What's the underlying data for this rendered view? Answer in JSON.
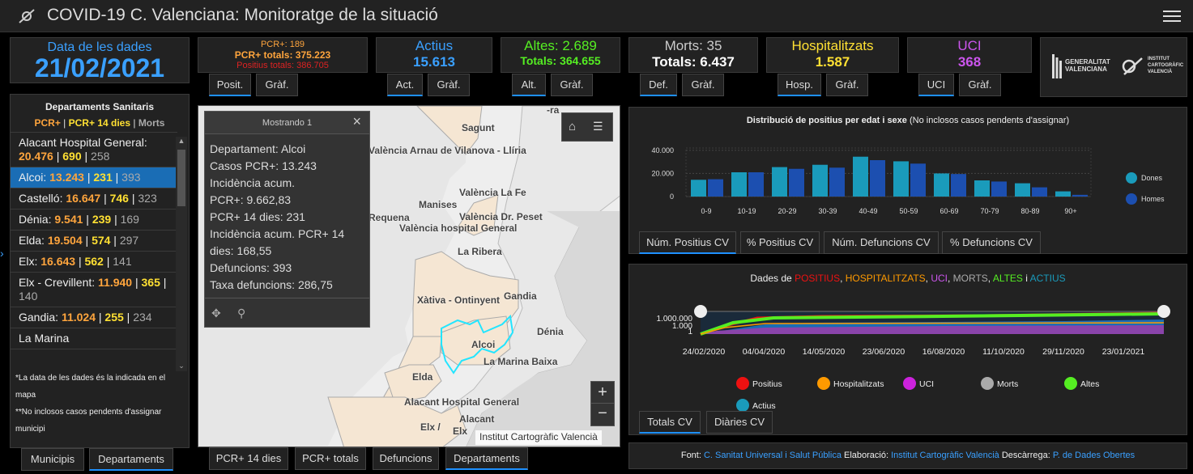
{
  "app": {
    "title": "COVID-19 C. Valenciana: Monitoratge de la situació"
  },
  "date_card": {
    "label": "Data de les dades",
    "value": "21/02/2021"
  },
  "pcr_card": {
    "line1": "PCR+: 189",
    "line2": "PCR+ totals: 375.223",
    "line3": "Positius totals: 386.705",
    "tab1": "Posit.",
    "tab2": "Gràf."
  },
  "actius_card": {
    "label": "Actius",
    "value": "15.613",
    "tab1": "Act.",
    "tab2": "Gràf."
  },
  "altes_card": {
    "label": "Altes: 2.689",
    "value": "Totals: 364.655",
    "tab1": "Alt.",
    "tab2": "Gràf."
  },
  "morts_card": {
    "label": "Morts: 35",
    "value": "Totals: 6.437",
    "tab1": "Def.",
    "tab2": "Gràf."
  },
  "hosp_card": {
    "label": "Hospitalitzats",
    "value": "1.587",
    "tab1": "Hosp.",
    "tab2": "Gràf."
  },
  "uci_card": {
    "label": "UCI",
    "value": "368",
    "tab1": "UCI",
    "tab2": "Gràf."
  },
  "logos": {
    "gva1": "GENERALITAT",
    "gva2": "VALENCIANA",
    "icv1": "INSTITUT",
    "icv2": "CARTOGRÀFIC",
    "icv3": "VALENCIÀ"
  },
  "departments": {
    "title": "Departaments Sanitaris",
    "legend_pcr": "PCR+",
    "legend_sep1": " | ",
    "legend_14": "PCR+ 14 dies",
    "legend_sep2": " | ",
    "legend_morts": "Morts",
    "items": [
      {
        "name": "Alacant Hospital General: ",
        "pcr": "20.476",
        "d14": "690",
        "morts": "258"
      },
      {
        "name": "Alcoi: ",
        "pcr": "13.243",
        "d14": "231",
        "morts": "393"
      },
      {
        "name": "Castelló: ",
        "pcr": "16.647",
        "d14": "746",
        "morts": "323"
      },
      {
        "name": "Dénia: ",
        "pcr": "9.541",
        "d14": "239",
        "morts": "169"
      },
      {
        "name": "Elda: ",
        "pcr": "19.504",
        "d14": "574",
        "morts": "297"
      },
      {
        "name": "Elx: ",
        "pcr": "16.643",
        "d14": "562",
        "morts": "141"
      },
      {
        "name": "Elx - Crevillent: ",
        "pcr": "11.940",
        "d14": "365",
        "morts": "140"
      },
      {
        "name": "Gandia: ",
        "pcr": "11.024",
        "d14": "255",
        "morts": "234"
      },
      {
        "name": "La Marina",
        "pcr": "",
        "d14": "",
        "morts": ""
      }
    ],
    "sep": " | ",
    "note1": "*La data de les dades és la indicada en el mapa",
    "note2": "**No inclosos casos pendents d'assignar municipi",
    "tab1": "Municipis",
    "tab2": "Departaments"
  },
  "popup": {
    "header": "Mostrando 1",
    "lines": [
      "Departament: Alcoi",
      "Casos PCR+: 13.243",
      "Incidència acum.",
      "PCR+: 9.662,83",
      "PCR+ 14 dies: 231",
      "Incidència acum. PCR+ 14",
      "dies: 168,55",
      "Defuncions: 393",
      "Taxa defuncions: 286,75"
    ]
  },
  "map": {
    "labels": [
      "Sagunt",
      "València Arnau de Vilanova - Llíria",
      "Manises",
      "València La Fe",
      "València Dr. Peset",
      "València hospital General",
      "La Ribera",
      "Xàtiva - Ontinyent",
      "Gandia",
      "Dénia",
      "Alcoi",
      "La Marina Baixa",
      "Elda",
      "Alacant Hospital General",
      "Alacant",
      "Elx /",
      "Elx",
      "Requena",
      "-ra"
    ],
    "attribution": "Institut Cartogràfic Valencià",
    "tabs": [
      "PCR+ 14 dies",
      "PCR+ totals",
      "Defuncions",
      "Departaments"
    ]
  },
  "age_chart": {
    "title_bold": "Distribució de positius per edat i sexe",
    "title_note": " (No inclosos casos pendents d'assignar)",
    "tabs": [
      "Núm. Positius CV",
      "% Positius CV",
      "Núm. Defuncions CV",
      "% Defuncions CV"
    ]
  },
  "chart_data": [
    {
      "type": "bar",
      "title": "Distribució de positius per edat i sexe (No inclosos casos pendents d'assignar)",
      "categories": [
        "0-9",
        "10-19",
        "20-29",
        "30-39",
        "40-49",
        "50-59",
        "60-69",
        "70-79",
        "80-89",
        "90+"
      ],
      "series": [
        {
          "name": "Dones",
          "color": "#1a9bbb",
          "values": [
            14500,
            21000,
            25500,
            27500,
            34500,
            30500,
            20000,
            14000,
            11500,
            4500
          ]
        },
        {
          "name": "Homes",
          "color": "#1c4fb0",
          "values": [
            15000,
            21000,
            24000,
            25000,
            31500,
            28500,
            19500,
            13000,
            8000,
            1500
          ]
        }
      ],
      "yticks": [
        "0",
        "20.000",
        "40.000"
      ],
      "ylim": [
        0,
        42000
      ]
    },
    {
      "type": "area",
      "title": "Dades de POSITIUS, HOSPITALITZATS, UCI, MORTS, ALTES i ACTIUS",
      "x": [
        "24/02/2020",
        "04/04/2020",
        "14/05/2020",
        "23/06/2020",
        "16/08/2020",
        "11/10/2020",
        "29/11/2020",
        "23/01/2021"
      ],
      "yticks": [
        "1",
        "1.000",
        "1.000.000"
      ],
      "log_scale": true,
      "series": [
        {
          "name": "Positius",
          "color": "#ee1111"
        },
        {
          "name": "Hospitalitzats",
          "color": "#ff9a00"
        },
        {
          "name": "UCI",
          "color": "#cc22dd"
        },
        {
          "name": "Morts",
          "color": "#aaaaaa"
        },
        {
          "name": "Altes",
          "color": "#55ee22"
        },
        {
          "name": "Actius",
          "color": "#1a9bbb"
        }
      ]
    }
  ],
  "series_chart": {
    "t0": "Dades de ",
    "t1": "POSITIUS",
    ", ": ", ",
    "t2": "HOSPITALITZATS",
    "t3": "UCI",
    "t4": "MORTS",
    "t5": "ALTES",
    "t6": " i ",
    "t7": "ACTIUS",
    "comma": ", ",
    "tabs": [
      "Totals CV",
      "Diàries CV"
    ]
  },
  "footer": {
    "t1": "Font: ",
    "l1": "C. Sanitat Universal i Salut Pública",
    "t2": " Elaboració: ",
    "l2": "Institut Cartogràfic Valencià",
    "t3": " Descàrrega: ",
    "l3": "P. de Dades Obertes"
  }
}
